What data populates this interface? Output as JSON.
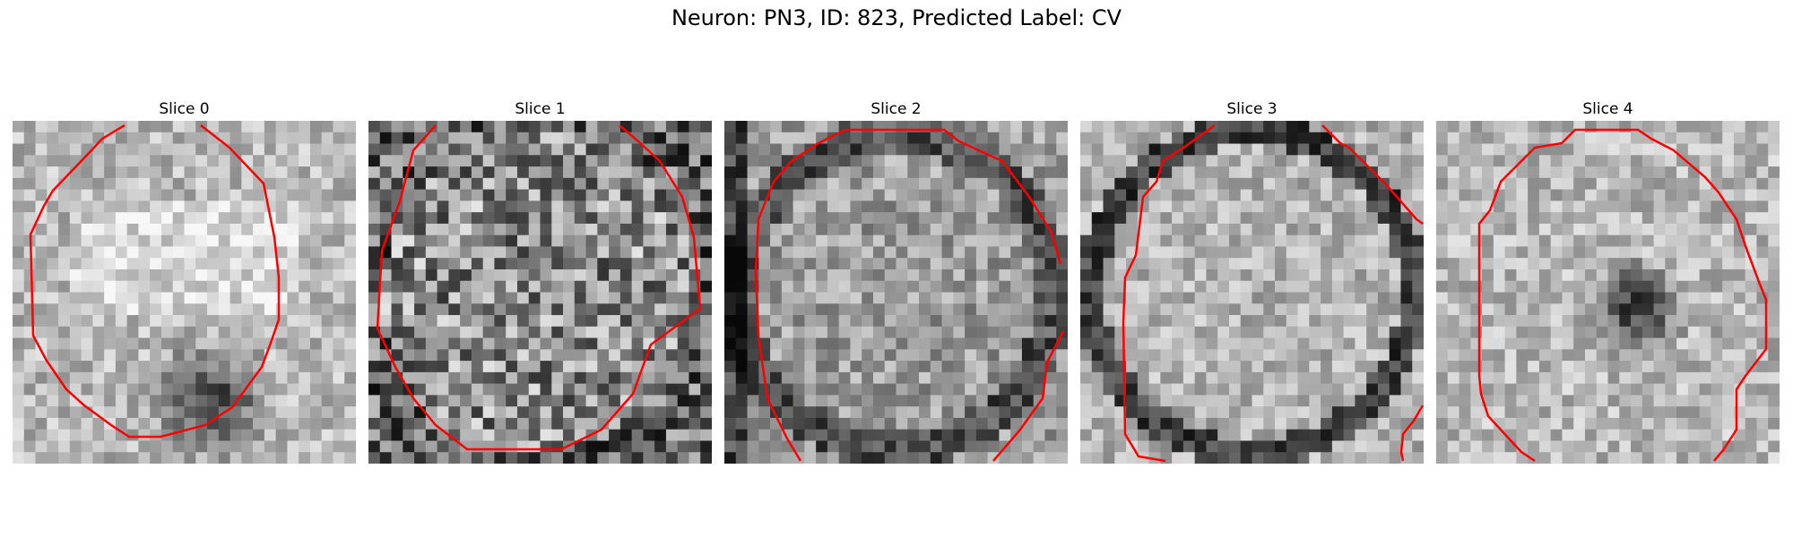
{
  "figure": {
    "title": "Neuron: PN3, ID: 823, Predicted Label: CV",
    "contour_color": "#ff0000"
  },
  "panels": [
    {
      "title": "Slice 0",
      "seed": 11,
      "pattern": "blob-dark-bottom"
    },
    {
      "title": "Slice 1",
      "seed": 23,
      "pattern": "noisy"
    },
    {
      "title": "Slice 2",
      "seed": 37,
      "pattern": "ring-dark-edge"
    },
    {
      "title": "Slice 3",
      "seed": 51,
      "pattern": "ring-dark"
    },
    {
      "title": "Slice 4",
      "seed": 67,
      "pattern": "center-dark"
    }
  ]
}
